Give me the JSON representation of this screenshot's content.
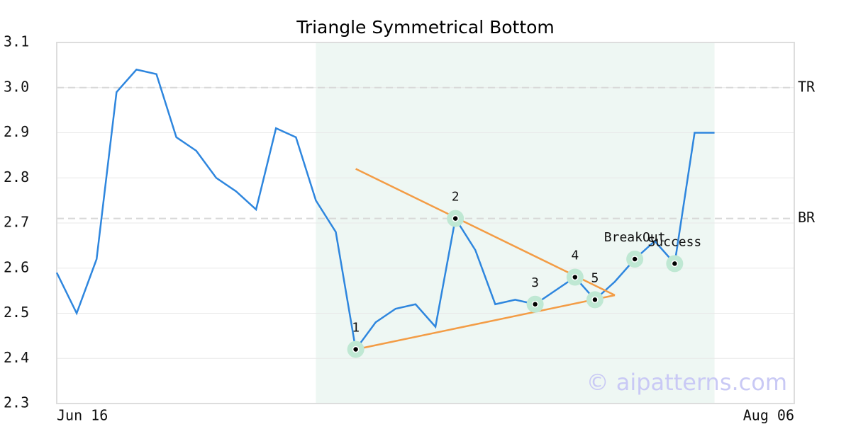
{
  "chart_data": {
    "type": "line",
    "title": "Triangle Symmetrical Bottom",
    "categories": [
      "Jun 16",
      null,
      null,
      null,
      null,
      null,
      null,
      null,
      null,
      null,
      null,
      null,
      null,
      null,
      null,
      null,
      null,
      null,
      null,
      null,
      null,
      null,
      null,
      null,
      null,
      null,
      null,
      null,
      null,
      null,
      null,
      null,
      null,
      null,
      null,
      null,
      null,
      "Aug 06"
    ],
    "series": [
      {
        "color": "#2e86de",
        "values": [
          2.59,
          2.5,
          2.62,
          2.99,
          3.04,
          3.03,
          2.89,
          2.86,
          2.8,
          2.77,
          2.73,
          2.91,
          2.89,
          2.75,
          2.68,
          2.42,
          2.48,
          2.51,
          2.52,
          2.47,
          2.71,
          2.64,
          2.52,
          2.53,
          2.52,
          2.55,
          2.58,
          2.53,
          2.57,
          2.62,
          2.66,
          2.61,
          2.9,
          2.9,
          null,
          null,
          null,
          null
        ]
      }
    ],
    "ylim": [
      2.3,
      3.1
    ],
    "yticks": [
      2.3,
      2.4,
      2.5,
      2.6,
      2.7,
      {
        "value": 3,
        "label": "3.0"
      },
      2.8,
      2.9,
      3.1
    ],
    "grid": true,
    "shaded_range": {
      "from": 13,
      "to": 33,
      "color": "#eef7f3"
    },
    "reference_lines": [
      {
        "label": "TR",
        "value": 3
      },
      {
        "label": "BR",
        "value": 2.71
      }
    ],
    "trend_lines": [
      {
        "color": "#f39c45",
        "x": [
          15,
          28
        ],
        "values": [
          2.82,
          2.54
        ]
      },
      {
        "color": "#f39c45",
        "x": [
          15,
          28
        ],
        "values": [
          2.42,
          2.54
        ]
      }
    ],
    "pattern_points": [
      {
        "label": "1",
        "x": 15,
        "value": 2.42
      },
      {
        "label": "2",
        "x": 20,
        "value": 2.71
      },
      {
        "label": "3",
        "x": 24,
        "value": 2.52
      },
      {
        "label": "4",
        "x": 26,
        "value": 2.58
      },
      {
        "label": "5",
        "x": 27,
        "value": 2.53
      },
      {
        "label": "BreakOut",
        "x": 29,
        "value": 2.62
      },
      {
        "label": "Success",
        "x": 31,
        "value": 2.61
      }
    ],
    "watermark": "© aipatterns.com"
  }
}
